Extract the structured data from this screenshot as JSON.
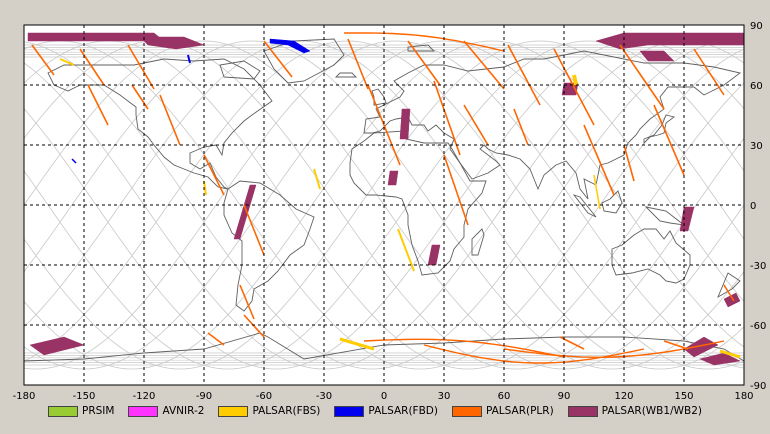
{
  "map": {
    "lon_ticks": [
      "-180",
      "-150",
      "-120",
      "-90",
      "-60",
      "-30",
      "0",
      "30",
      "60",
      "90",
      "120",
      "150",
      "180"
    ],
    "lat_ticks": [
      "90",
      "60",
      "30",
      "0",
      "-30",
      "-60",
      "-90"
    ],
    "colors": {
      "background": "#d4d0c8",
      "plot": "#ffffff",
      "grid": "#000000",
      "coast": "#606060",
      "orbit": "#c8c8c8"
    }
  },
  "legend": [
    {
      "label": "PRSIM",
      "color": "#99cc33"
    },
    {
      "label": "AVNIR-2",
      "color": "#ff33ff"
    },
    {
      "label": "PALSAR(FBS)",
      "color": "#ffcc00"
    },
    {
      "label": "PALSAR(FBD)",
      "color": "#0000ee"
    },
    {
      "label": "PALSAR(PLR)",
      "color": "#ff6600"
    },
    {
      "label": "PALSAR(WB1/WB2)",
      "color": "#993366"
    }
  ]
}
